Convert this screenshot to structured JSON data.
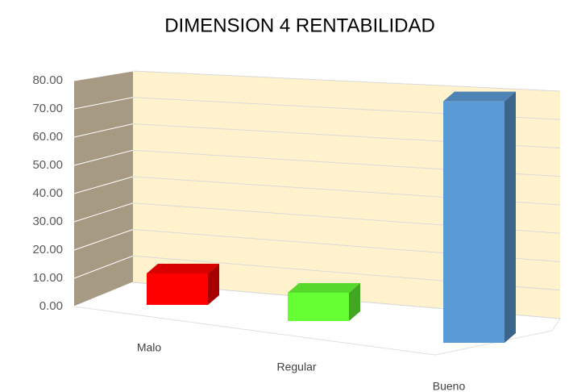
{
  "chart_data": {
    "type": "bar3d",
    "title": "DIMENSION 4 RENTABILIDAD",
    "categories": [
      "Malo",
      "Regular",
      "Bueno"
    ],
    "values": [
      12,
      10,
      78
    ],
    "colors": [
      "#ff0000",
      "#66ff33",
      "#5b9bd5"
    ],
    "ylim": [
      0,
      80
    ],
    "yticks": [
      {
        "value": 0,
        "label": "0.00"
      },
      {
        "value": 10,
        "label": "10.00"
      },
      {
        "value": 20,
        "label": "20.00"
      },
      {
        "value": 30,
        "label": "30.00"
      },
      {
        "value": 40,
        "label": "40.00"
      },
      {
        "value": 50,
        "label": "50.00"
      },
      {
        "value": 60,
        "label": "60.00"
      },
      {
        "value": 70,
        "label": "70.00"
      },
      {
        "value": 80,
        "label": "80.00"
      }
    ],
    "grid": true
  }
}
